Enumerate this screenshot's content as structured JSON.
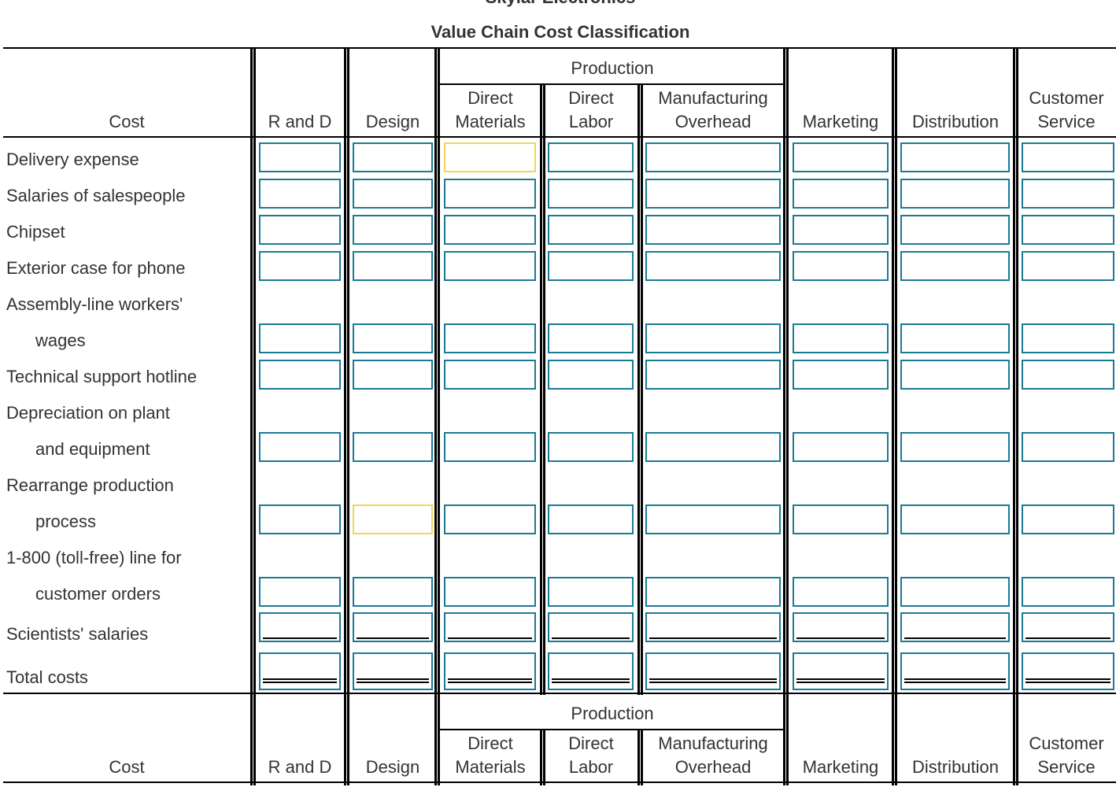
{
  "company": "Skylar Electronics",
  "title": "Value Chain Cost Classification",
  "header": {
    "cost": "Cost",
    "production": "Production",
    "columns": [
      {
        "key": "rand_d",
        "lines": [
          "",
          "R and D"
        ]
      },
      {
        "key": "design",
        "lines": [
          "",
          "Design"
        ]
      },
      {
        "key": "direct_materials",
        "lines": [
          "Direct",
          "Materials"
        ]
      },
      {
        "key": "direct_labor",
        "lines": [
          "Direct",
          "Labor"
        ]
      },
      {
        "key": "manufacturing_overhead",
        "lines": [
          "Manufacturing",
          "Overhead"
        ]
      },
      {
        "key": "marketing",
        "lines": [
          "",
          "Marketing"
        ]
      },
      {
        "key": "distribution",
        "lines": [
          "",
          "Distribution"
        ]
      },
      {
        "key": "customer_service",
        "lines": [
          "Customer",
          "Service"
        ]
      }
    ]
  },
  "rows": [
    {
      "label": [
        "Delivery expense"
      ],
      "values": [
        "",
        "",
        "",
        "",
        "",
        "",
        "",
        ""
      ]
    },
    {
      "label": [
        "Salaries of salespeople"
      ],
      "values": [
        "",
        "",
        "",
        "",
        "",
        "",
        "",
        ""
      ]
    },
    {
      "label": [
        "Chipset"
      ],
      "values": [
        "",
        "",
        "",
        "",
        "",
        "",
        "",
        ""
      ]
    },
    {
      "label": [
        "Exterior case for phone"
      ],
      "values": [
        "",
        "",
        "",
        "",
        "",
        "",
        "",
        ""
      ]
    },
    {
      "label": [
        "Assembly-line workers'",
        "wages"
      ],
      "values": [
        "",
        "",
        "",
        "",
        "",
        "",
        "",
        ""
      ]
    },
    {
      "label": [
        "Technical support hotline"
      ],
      "values": [
        "",
        "",
        "",
        "",
        "",
        "",
        "",
        ""
      ]
    },
    {
      "label": [
        "Depreciation on plant",
        "and equipment"
      ],
      "values": [
        "",
        "",
        "",
        "",
        "",
        "",
        "",
        ""
      ]
    },
    {
      "label": [
        "Rearrange production",
        "process"
      ],
      "values": [
        "",
        "",
        "",
        "",
        "",
        "",
        "",
        ""
      ]
    },
    {
      "label": [
        "1-800 (toll-free) line for",
        "customer orders"
      ],
      "values": [
        "",
        "",
        "",
        "",
        "",
        "",
        "",
        ""
      ]
    },
    {
      "label": [
        "Scientists' salaries"
      ],
      "values": [
        "",
        "",
        "",
        "",
        "",
        "",
        "",
        ""
      ]
    },
    {
      "label": [
        "Total costs"
      ],
      "values": [
        "",
        "",
        "",
        "",
        "",
        "",
        "",
        ""
      ]
    }
  ],
  "colors": {
    "input_border": "#1a7a94",
    "focused_border": "#f2d55a"
  }
}
